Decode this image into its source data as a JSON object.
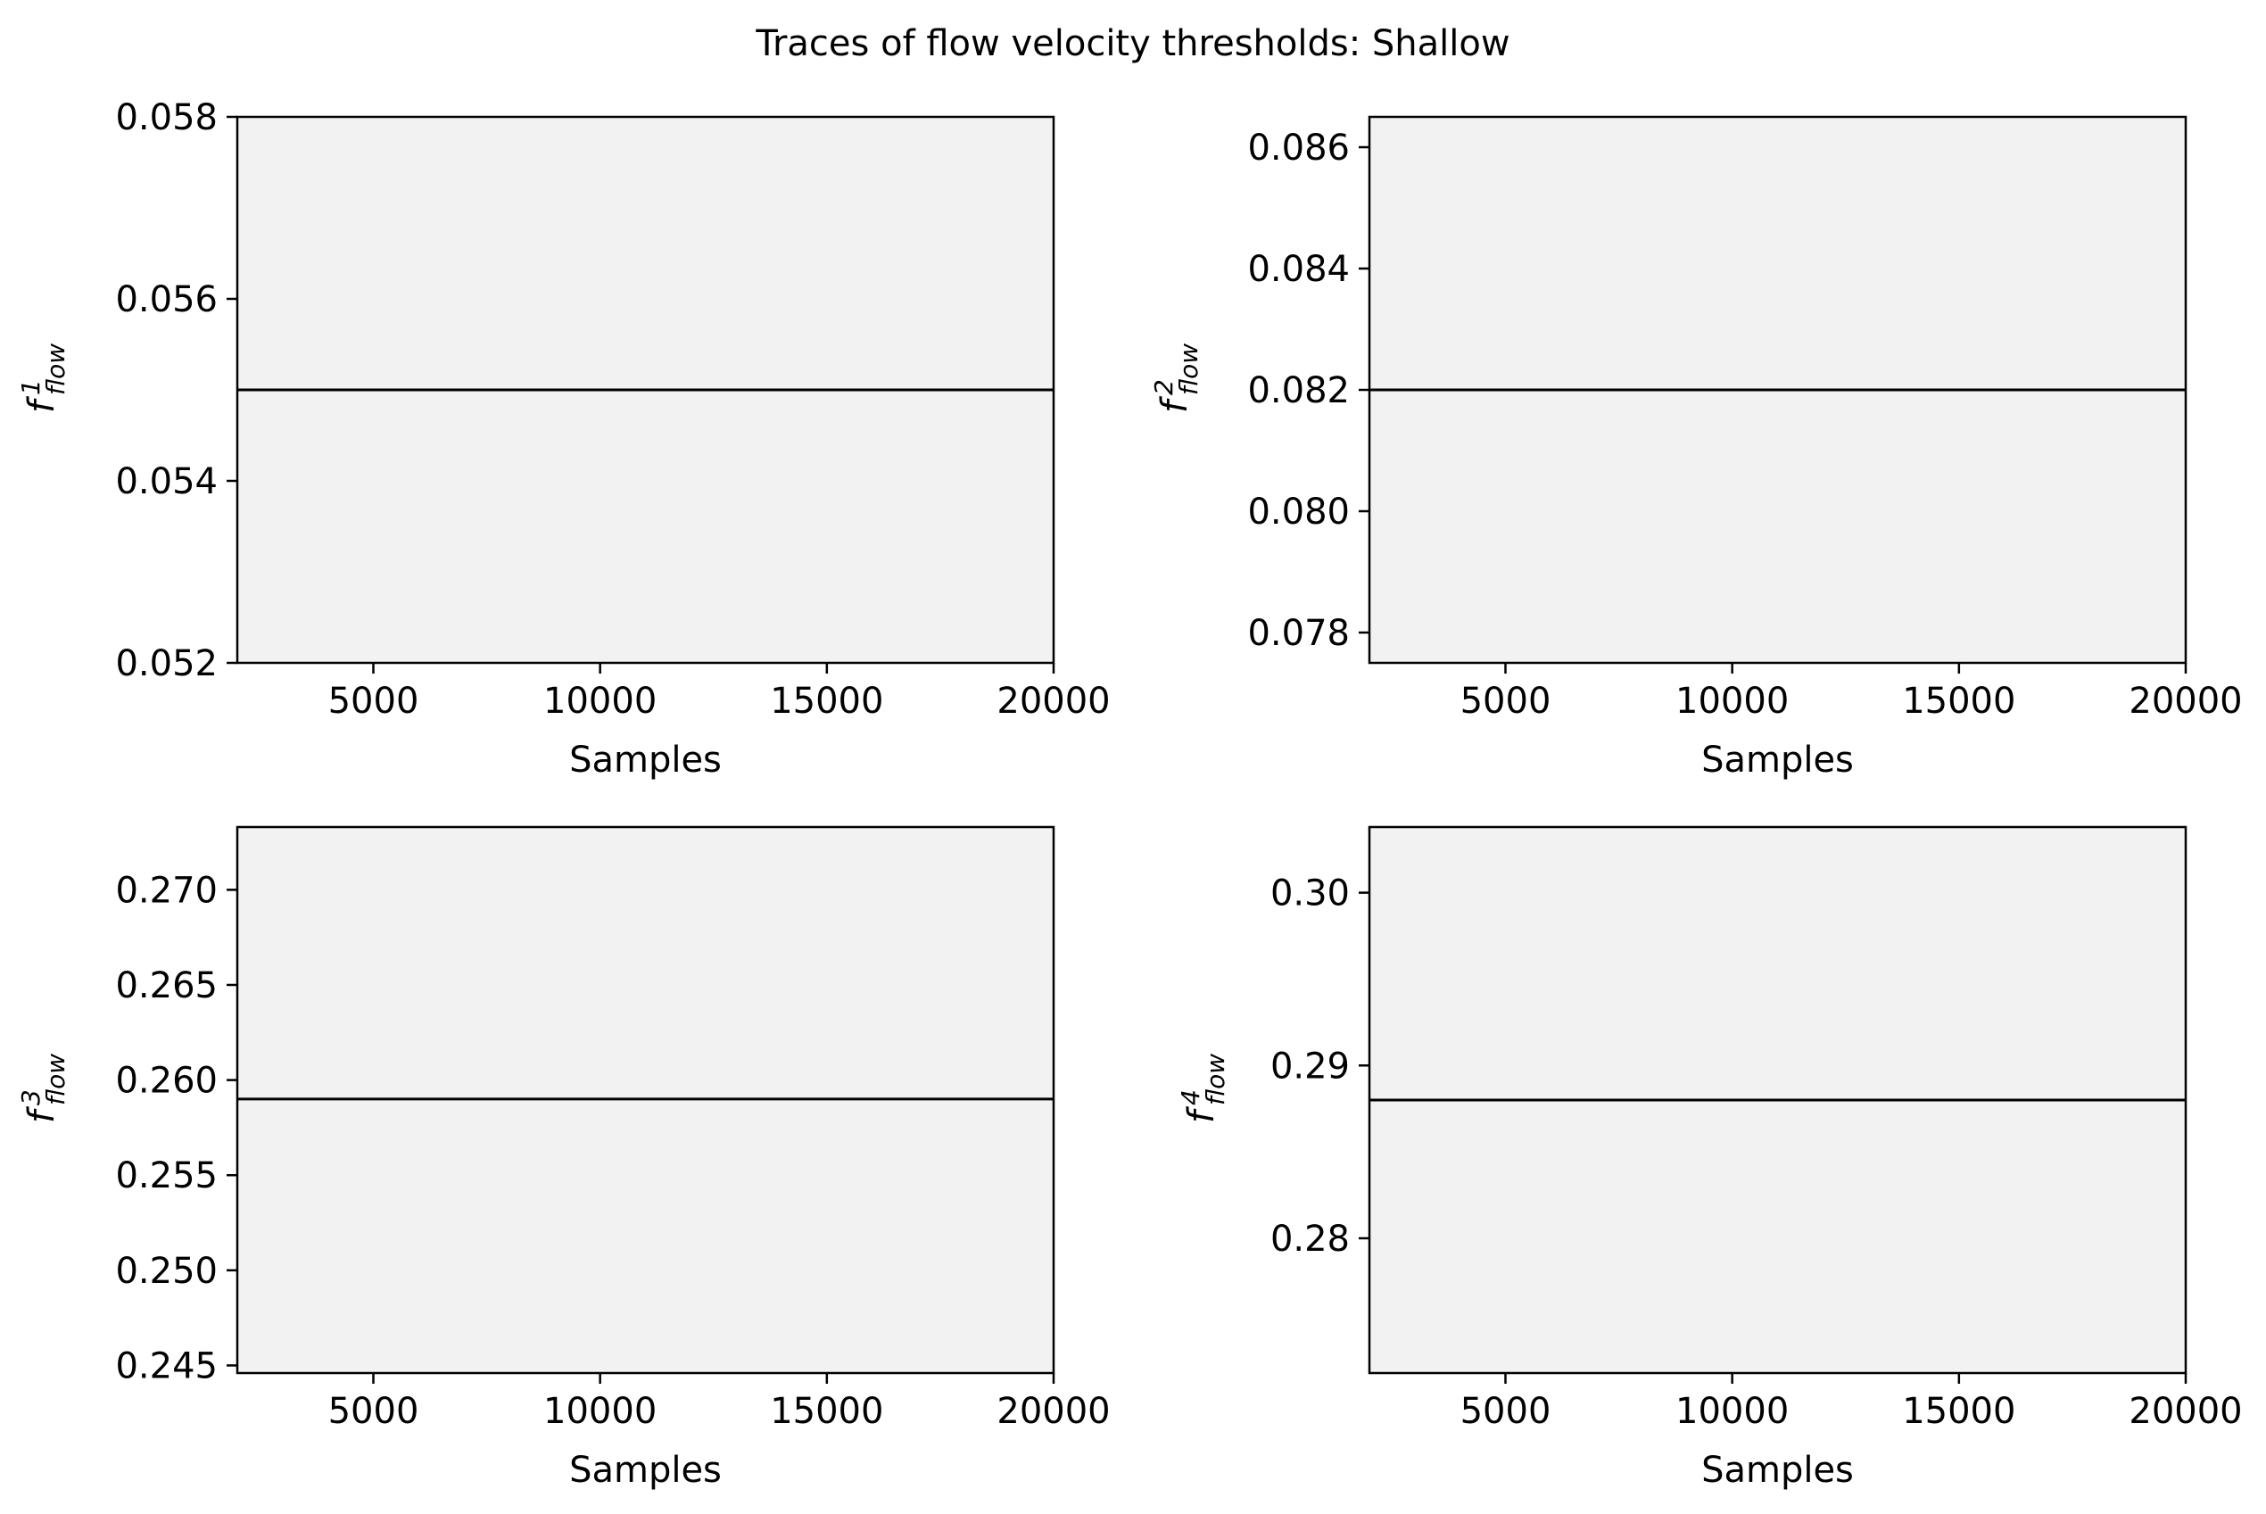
{
  "figure": {
    "title": "Traces of flow velocity thresholds: Shallow",
    "background": "#ffffff",
    "axes_facecolor": "#f2f2f2",
    "line_color": "#000000"
  },
  "chart_data": [
    {
      "type": "line",
      "xlabel": "Samples",
      "ylabel_base": "f",
      "ylabel_sup": "1",
      "ylabel_sub": "flow",
      "xlim": [
        2000,
        20000
      ],
      "ylim": [
        0.052,
        0.058
      ],
      "xticks": [
        5000,
        10000,
        15000,
        20000
      ],
      "xtick_labels": [
        "5000",
        "10000",
        "15000",
        "20000"
      ],
      "yticks": [
        0.052,
        0.054,
        0.056,
        0.058
      ],
      "ytick_labels": [
        "0.052",
        "0.054",
        "0.056",
        "0.058"
      ],
      "series": [
        {
          "x": [
            2000,
            20000
          ],
          "y": [
            0.055,
            0.055
          ]
        }
      ]
    },
    {
      "type": "line",
      "xlabel": "Samples",
      "ylabel_base": "f",
      "ylabel_sup": "2",
      "ylabel_sub": "flow",
      "xlim": [
        2000,
        20000
      ],
      "ylim": [
        0.0775,
        0.0865
      ],
      "xticks": [
        5000,
        10000,
        15000,
        20000
      ],
      "xtick_labels": [
        "5000",
        "10000",
        "15000",
        "20000"
      ],
      "yticks": [
        0.078,
        0.08,
        0.082,
        0.084,
        0.086
      ],
      "ytick_labels": [
        "0.078",
        "0.080",
        "0.082",
        "0.084",
        "0.086"
      ],
      "series": [
        {
          "x": [
            2000,
            20000
          ],
          "y": [
            0.082,
            0.082
          ]
        }
      ]
    },
    {
      "type": "line",
      "xlabel": "Samples",
      "ylabel_base": "f",
      "ylabel_sup": "3",
      "ylabel_sub": "flow",
      "xlim": [
        2000,
        20000
      ],
      "ylim": [
        0.2446,
        0.2733
      ],
      "xticks": [
        5000,
        10000,
        15000,
        20000
      ],
      "xtick_labels": [
        "5000",
        "10000",
        "15000",
        "20000"
      ],
      "yticks": [
        0.245,
        0.25,
        0.255,
        0.26,
        0.265,
        0.27
      ],
      "ytick_labels": [
        "0.245",
        "0.250",
        "0.255",
        "0.260",
        "0.265",
        "0.270"
      ],
      "series": [
        {
          "x": [
            2000,
            20000
          ],
          "y": [
            0.259,
            0.259
          ]
        }
      ]
    },
    {
      "type": "line",
      "xlabel": "Samples",
      "ylabel_base": "f",
      "ylabel_sup": "4",
      "ylabel_sub": "flow",
      "xlim": [
        2000,
        20000
      ],
      "ylim": [
        0.2722,
        0.3038
      ],
      "xticks": [
        5000,
        10000,
        15000,
        20000
      ],
      "xtick_labels": [
        "5000",
        "10000",
        "15000",
        "20000"
      ],
      "yticks": [
        0.28,
        0.29,
        0.3
      ],
      "ytick_labels": [
        "0.28",
        "0.29",
        "0.30"
      ],
      "series": [
        {
          "x": [
            2000,
            20000
          ],
          "y": [
            0.288,
            0.288
          ]
        }
      ]
    }
  ]
}
